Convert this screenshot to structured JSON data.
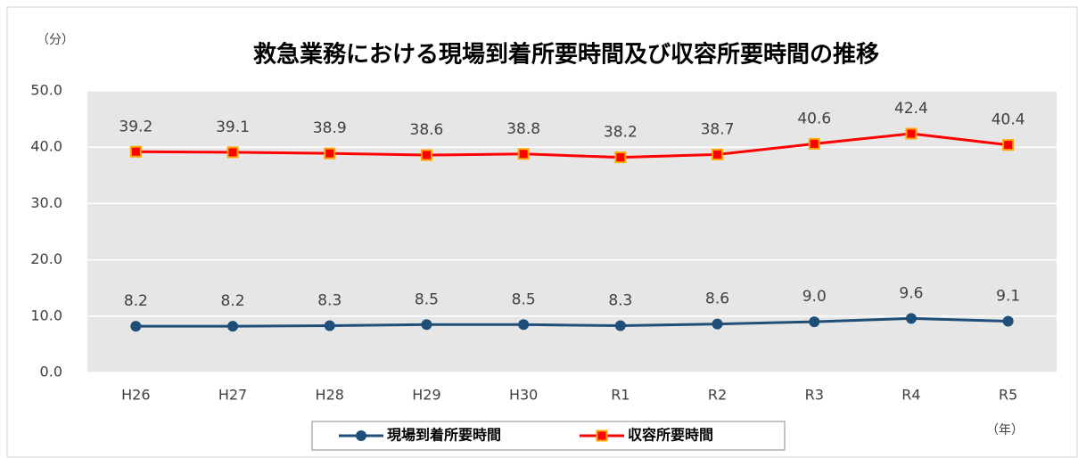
{
  "chart_data": {
    "type": "line",
    "title": "救急業務における現場到着所要時間及び収容所要時間の推移",
    "y_label": "（分）",
    "x_label": "（年）",
    "categories": [
      "H26",
      "H27",
      "H28",
      "H29",
      "H30",
      "R1",
      "R2",
      "R3",
      "R4",
      "R5"
    ],
    "series": [
      {
        "name": "現場到着所要時間",
        "color": "#1f4e79",
        "marker": "circle",
        "values": [
          8.2,
          8.2,
          8.3,
          8.5,
          8.5,
          8.3,
          8.6,
          9.0,
          9.6,
          9.1
        ],
        "value_labels": [
          "8.2",
          "8.2",
          "8.3",
          "8.5",
          "8.5",
          "8.3",
          "8.6",
          "9.0",
          "9.6",
          "9.1"
        ]
      },
      {
        "name": "収容所要時間",
        "color": "#ff0000",
        "marker": "square",
        "values": [
          39.2,
          39.1,
          38.9,
          38.6,
          38.8,
          38.2,
          38.7,
          40.6,
          42.4,
          40.4
        ],
        "value_labels": [
          "39.2",
          "39.1",
          "38.9",
          "38.6",
          "38.8",
          "38.2",
          "38.7",
          "40.6",
          "42.4",
          "40.4"
        ]
      }
    ],
    "ylim": [
      0,
      50
    ],
    "yticks": [
      {
        "value": 0,
        "label": "0.0"
      },
      {
        "value": 10,
        "label": "10.0"
      },
      {
        "value": 20,
        "label": "20.0"
      },
      {
        "value": 30,
        "label": "30.0"
      },
      {
        "value": 40,
        "label": "40.0"
      },
      {
        "value": 50,
        "label": "50.0"
      }
    ],
    "grid": true,
    "legend": "bottom"
  }
}
